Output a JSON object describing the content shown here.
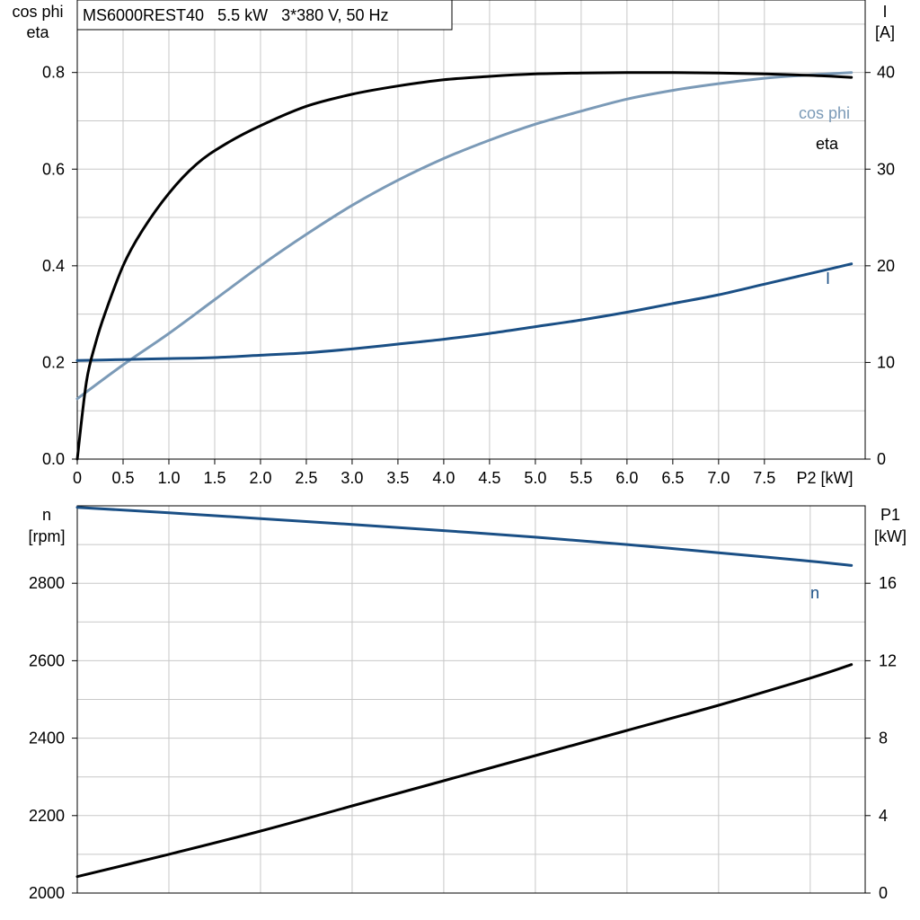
{
  "colors": {
    "eta": "#000000",
    "cos_phi": "#7b9ab7",
    "current": "#1a4f85",
    "speed": "#1a4f85",
    "p1": "#000000",
    "grid": "#c8c8c8"
  },
  "chart_data": [
    {
      "type": "line",
      "title": "MS6000REST40   5.5 kW   3*380 V, 50 Hz",
      "xlabel": "P2 [kW]",
      "ylabel_left": [
        "cos phi",
        "eta"
      ],
      "ylabel_right": [
        "I",
        "[A]"
      ],
      "xlim": [
        0,
        8.6
      ],
      "ylim_left": [
        0,
        0.95
      ],
      "ylim_right": [
        0,
        47.5
      ],
      "x_ticks": [
        0,
        0.5,
        1.0,
        1.5,
        2.0,
        2.5,
        3.0,
        3.5,
        4.0,
        4.5,
        5.0,
        5.5,
        6.0,
        6.5,
        7.0,
        7.5
      ],
      "x_tick_labels": [
        "0",
        "0.5",
        "1.0",
        "1.5",
        "2.0",
        "2.5",
        "3.0",
        "3.5",
        "4.0",
        "4.5",
        "5.0",
        "5.5",
        "6.0",
        "6.5",
        "7.0",
        "7.5"
      ],
      "y_left_ticks": [
        0.0,
        0.2,
        0.4,
        0.6,
        0.8
      ],
      "y_left_tick_labels": [
        "0.0",
        "0.2",
        "0.4",
        "0.6",
        "0.8"
      ],
      "y_right_ticks": [
        0,
        10,
        20,
        30,
        40
      ],
      "y_right_tick_labels": [
        "0",
        "10",
        "20",
        "30",
        "40"
      ],
      "grid": true,
      "series": [
        {
          "name": "eta",
          "axis": "left",
          "x": [
            0,
            0.1,
            0.2,
            0.3,
            0.5,
            0.7,
            1.0,
            1.3,
            1.6,
            2.0,
            2.5,
            3.0,
            3.5,
            4.0,
            4.5,
            5.0,
            5.5,
            6.0,
            6.5,
            7.0,
            7.5,
            8.0,
            8.45
          ],
          "y": [
            0,
            0.16,
            0.24,
            0.3,
            0.4,
            0.47,
            0.55,
            0.61,
            0.65,
            0.69,
            0.73,
            0.755,
            0.772,
            0.785,
            0.792,
            0.797,
            0.799,
            0.8,
            0.8,
            0.799,
            0.797,
            0.794,
            0.79
          ]
        },
        {
          "name": "cos phi",
          "axis": "left",
          "x": [
            0,
            0.5,
            1.0,
            1.5,
            2.0,
            2.5,
            3.0,
            3.5,
            4.0,
            4.5,
            5.0,
            5.5,
            6.0,
            6.5,
            7.0,
            7.5,
            8.0,
            8.45
          ],
          "y": [
            0.125,
            0.195,
            0.26,
            0.33,
            0.4,
            0.465,
            0.525,
            0.577,
            0.622,
            0.66,
            0.693,
            0.72,
            0.745,
            0.763,
            0.777,
            0.788,
            0.795,
            0.8
          ]
        },
        {
          "name": "I",
          "axis": "right",
          "x": [
            0,
            0.5,
            1.0,
            1.5,
            2.0,
            2.5,
            3.0,
            3.5,
            4.0,
            4.5,
            5.0,
            5.5,
            6.0,
            6.5,
            7.0,
            7.5,
            8.0,
            8.45
          ],
          "y": [
            10.2,
            10.3,
            10.4,
            10.5,
            10.75,
            11.0,
            11.4,
            11.9,
            12.4,
            13.0,
            13.7,
            14.4,
            15.2,
            16.1,
            17.0,
            18.1,
            19.2,
            20.2
          ]
        }
      ]
    },
    {
      "type": "line",
      "ylabel_left": [
        "n",
        "[rpm]"
      ],
      "ylabel_right": [
        "P1",
        "[kW]"
      ],
      "xlim": [
        0,
        8.6
      ],
      "ylim_left": [
        2000,
        3000
      ],
      "ylim_right": [
        0,
        20
      ],
      "y_left_ticks": [
        2000,
        2200,
        2400,
        2600,
        2800
      ],
      "y_left_tick_labels": [
        "2000",
        "2200",
        "2400",
        "2600",
        "2800"
      ],
      "y_right_ticks": [
        0,
        4,
        8,
        12,
        16
      ],
      "y_right_tick_labels": [
        "0",
        "4",
        "8",
        "12",
        "16"
      ],
      "grid": true,
      "series": [
        {
          "name": "n",
          "axis": "left",
          "x": [
            0,
            1,
            2,
            3,
            4,
            5,
            6,
            7,
            8,
            8.45
          ],
          "y": [
            2996,
            2982,
            2967,
            2952,
            2936,
            2919,
            2900,
            2879,
            2857,
            2846
          ]
        },
        {
          "axis": "right",
          "x": [
            0,
            1,
            2,
            3,
            4,
            5,
            6,
            7,
            8,
            8.45
          ],
          "y": [
            0.85,
            2.0,
            3.2,
            4.5,
            5.8,
            7.1,
            8.4,
            9.7,
            11.1,
            11.8
          ]
        }
      ]
    }
  ]
}
